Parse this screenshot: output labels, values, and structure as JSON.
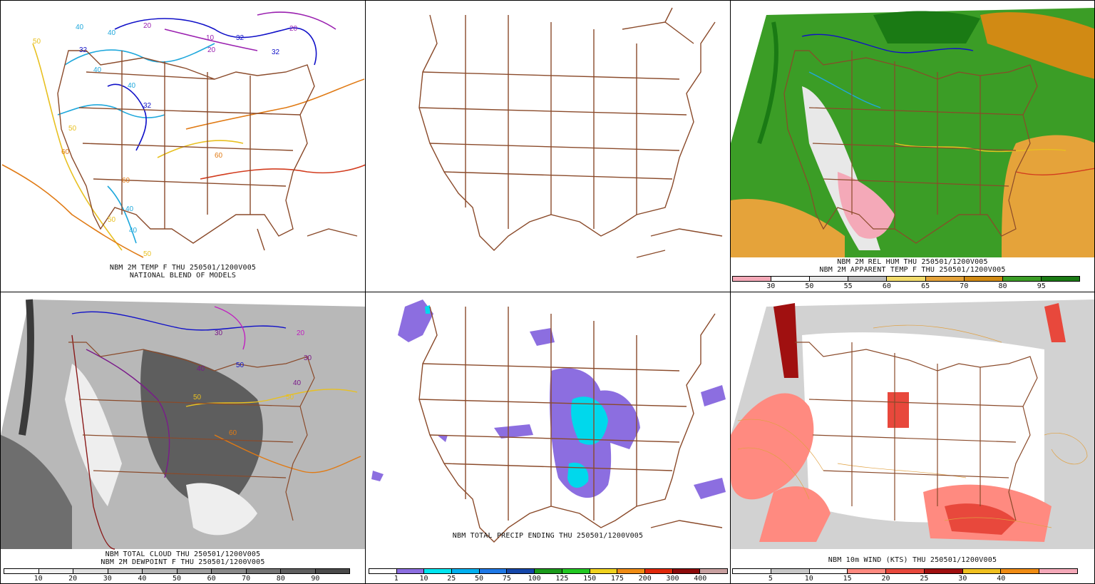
{
  "panels": {
    "temp": {
      "caption1": "NBM 2M TEMP F THU 250501/1200V005",
      "caption2": "NATIONAL BLEND OF MODELS",
      "labels": [
        "50",
        "40",
        "40",
        "32",
        "20",
        "10",
        "20",
        "32",
        "20",
        "32",
        "40",
        "40",
        "32",
        "50",
        "60",
        "60",
        "40",
        "40",
        "50",
        "60",
        "50"
      ]
    },
    "blank": {},
    "relhum": {
      "caption1": "NBM 2M REL HUM THU 250501/1200V005",
      "caption2": "NBM 2M APPARENT TEMP F THU 250501/1200V005",
      "ticks": [
        "30",
        "50",
        "55",
        "60",
        "65",
        "70",
        "80",
        "95"
      ],
      "colors": [
        "#f4a9b8",
        "#ffffff",
        "#e8e8e8",
        "#bdbdbd",
        "#f2dc6c",
        "#e5a33a",
        "#d18a14",
        "#3b9d26",
        "#1a7a14"
      ]
    },
    "cloud": {
      "caption1": "NBM TOTAL CLOUD THU 250501/1200V005",
      "caption2": "NBM 2M DEWPOINT F THU 250501/1200V005",
      "ticks": [
        "10",
        "20",
        "30",
        "40",
        "50",
        "60",
        "70",
        "80",
        "90"
      ],
      "colors": [
        "#ffffff",
        "#f0f0f0",
        "#e0e0e0",
        "#cccccc",
        "#b8b8b8",
        "#a0a0a0",
        "#8a8a8a",
        "#747474",
        "#5e5e5e",
        "#4a4a4a"
      ],
      "labels": [
        "50",
        "50",
        "40",
        "30",
        "20",
        "60",
        "50",
        "40",
        "30"
      ]
    },
    "precip": {
      "caption1": "NBM TOTAL PRECIP ENDING THU 250501/1200V005",
      "ticks": [
        "1",
        "10",
        "25",
        "50",
        "75",
        "100",
        "125",
        "150",
        "175",
        "200",
        "300",
        "400"
      ],
      "colors": [
        "#ffffff",
        "#8c6ee0",
        "#00e5f0",
        "#00b0f0",
        "#1e78e6",
        "#1446aa",
        "#1a9a1a",
        "#22c822",
        "#f0d21e",
        "#f08c14",
        "#e0280a",
        "#8c0a0a",
        "#c8a0a0"
      ]
    },
    "wind": {
      "caption1": "NBM 10m WIND (KTS) THU 250501/1200V005",
      "ticks": [
        "5",
        "10",
        "15",
        "20",
        "25",
        "30",
        "40"
      ],
      "colors": [
        "#ffffff",
        "#c8c8c8",
        "#ffffff",
        "#ff8a80",
        "#e8483c",
        "#a01010",
        "#f0c020",
        "#f08c14",
        "#f4a9b8"
      ]
    }
  }
}
